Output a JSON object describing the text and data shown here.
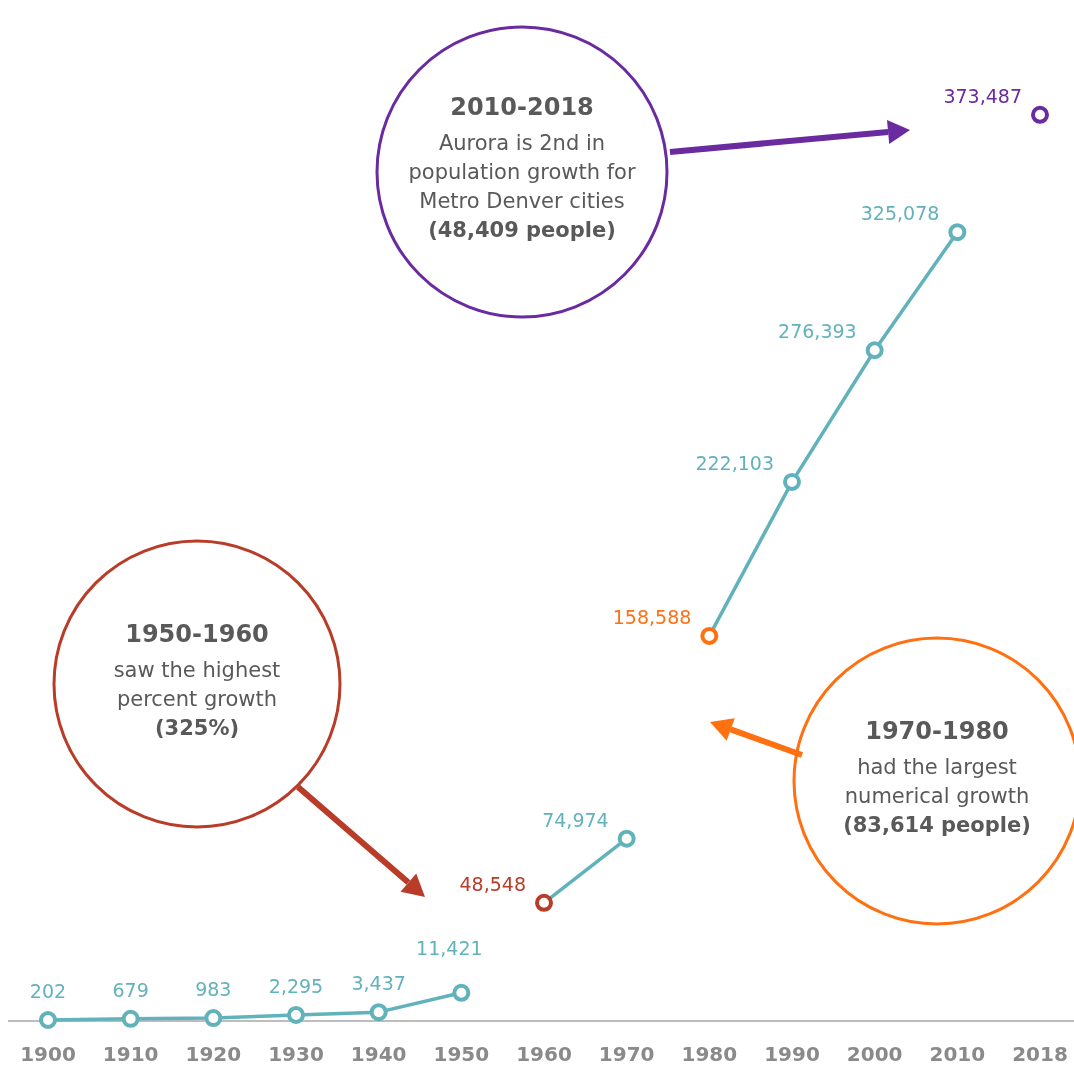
{
  "chart_data": {
    "type": "line",
    "categories": [
      "1900",
      "1910",
      "1920",
      "1930",
      "1940",
      "1950",
      "1960",
      "1970",
      "1980",
      "1990",
      "2000",
      "2010",
      "2018"
    ],
    "ylim": [
      0,
      420000
    ],
    "marker": "circle",
    "line_style": "solid",
    "series": [
      {
        "color": "#62b2bb",
        "values": [
          202,
          679,
          983,
          2295,
          3437,
          11421,
          null,
          null,
          null,
          null,
          null,
          null,
          null
        ],
        "value_labels": [
          "202",
          "679",
          "983",
          "2,295",
          "3,437",
          "11,421",
          null,
          null,
          null,
          null,
          null,
          null,
          null
        ]
      },
      {
        "color": "#62b2bb",
        "colors": [
          null,
          null,
          null,
          null,
          null,
          null,
          "#b83c28",
          "#62b2bb",
          null,
          null,
          null,
          null,
          null
        ],
        "values": [
          null,
          null,
          null,
          null,
          null,
          null,
          48548,
          74974,
          null,
          null,
          null,
          null,
          null
        ],
        "value_labels": [
          null,
          null,
          null,
          null,
          null,
          null,
          "48,548",
          "74,974",
          null,
          null,
          null,
          null,
          null
        ]
      },
      {
        "color": "#62b2bb",
        "colors": [
          null,
          null,
          null,
          null,
          null,
          null,
          null,
          null,
          "#ff7010",
          "#62b2bb",
          "#62b2bb",
          "#62b2bb",
          null
        ],
        "values": [
          null,
          null,
          null,
          null,
          null,
          null,
          null,
          null,
          158588,
          222103,
          276393,
          325078,
          null
        ],
        "value_labels": [
          null,
          null,
          null,
          null,
          null,
          null,
          null,
          null,
          "158,588",
          "222,103",
          "276,393",
          "325,078",
          null
        ]
      },
      {
        "color": "#6a2aa0",
        "values": [
          null,
          null,
          null,
          null,
          null,
          null,
          null,
          null,
          null,
          null,
          null,
          null,
          373487
        ],
        "value_labels": [
          null,
          null,
          null,
          null,
          null,
          null,
          null,
          null,
          null,
          null,
          null,
          null,
          "373,487"
        ]
      }
    ],
    "annotations": [
      "2010-2018\nAurora is 2nd in\npopulation growth for\nMetro Denver cities\n(48,409 people)",
      "1950-1960\nsaw the highest\npercent growth\n(325%)",
      "1970-1980\nhad the largest\nnumerical growth\n(83,614 people)"
    ]
  }
}
